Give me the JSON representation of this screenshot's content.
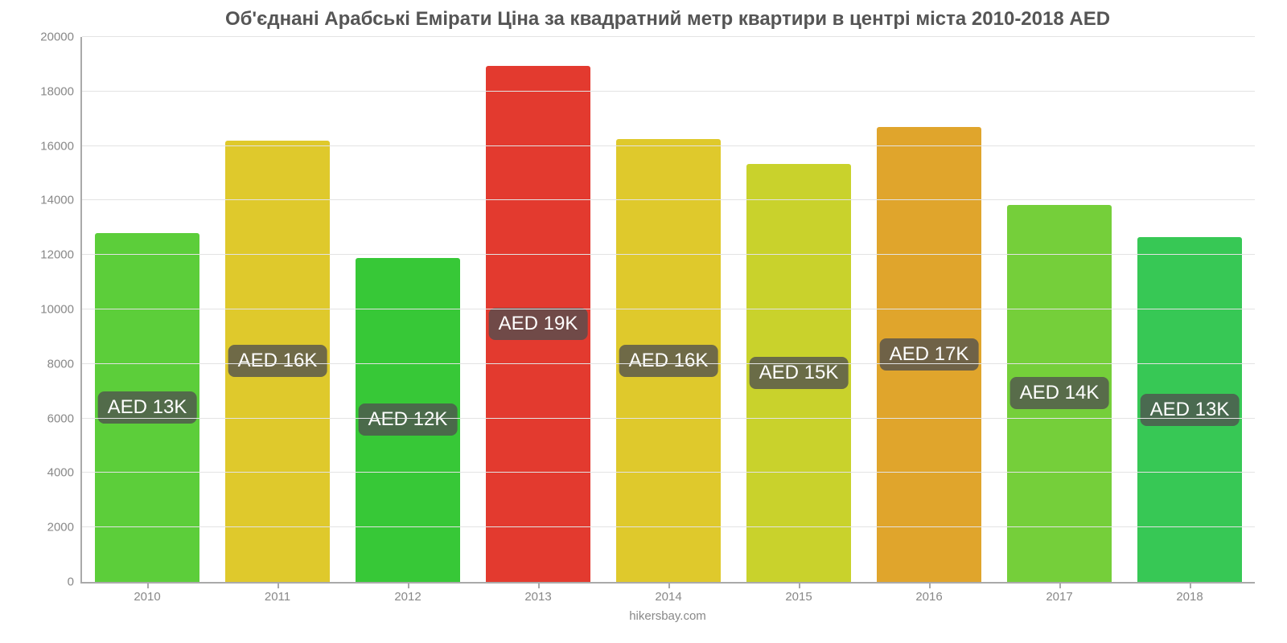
{
  "chart": {
    "type": "bar",
    "title": "Об'єднані Арабські Емірати Ціна за квадратний метр квартири в центрі міста 2010-2018 AED",
    "title_fontsize": 24,
    "title_color": "#555555",
    "source": "hikersbay.com",
    "background_color": "#ffffff",
    "axis_color": "#aaaaaa",
    "grid_color": "#e3e3e3",
    "tick_label_color": "#888888",
    "tick_fontsize": 15,
    "ylim": [
      0,
      20000
    ],
    "ytick_step": 2000,
    "yticks": [
      0,
      2000,
      4000,
      6000,
      8000,
      10000,
      12000,
      14000,
      16000,
      18000,
      20000
    ],
    "categories": [
      "2010",
      "2011",
      "2012",
      "2013",
      "2014",
      "2015",
      "2016",
      "2017",
      "2018"
    ],
    "values": [
      12800,
      16200,
      11900,
      18950,
      16250,
      15350,
      16700,
      13850,
      12650
    ],
    "bar_colors": [
      "#5cce3a",
      "#dfc92c",
      "#37c837",
      "#e33a2f",
      "#dfc92c",
      "#c9d22c",
      "#e0a52c",
      "#75cf3a",
      "#37c855"
    ],
    "value_labels": [
      "AED 13K",
      "AED 16K",
      "AED 12K",
      "AED 19K",
      "AED 16K",
      "AED 15K",
      "AED 17K",
      "AED 14K",
      "AED 13K"
    ],
    "value_label_fontsize": 24,
    "value_label_bg": "rgba(80,80,80,0.78)",
    "value_label_color": "#ffffff",
    "bar_width": 0.8
  }
}
